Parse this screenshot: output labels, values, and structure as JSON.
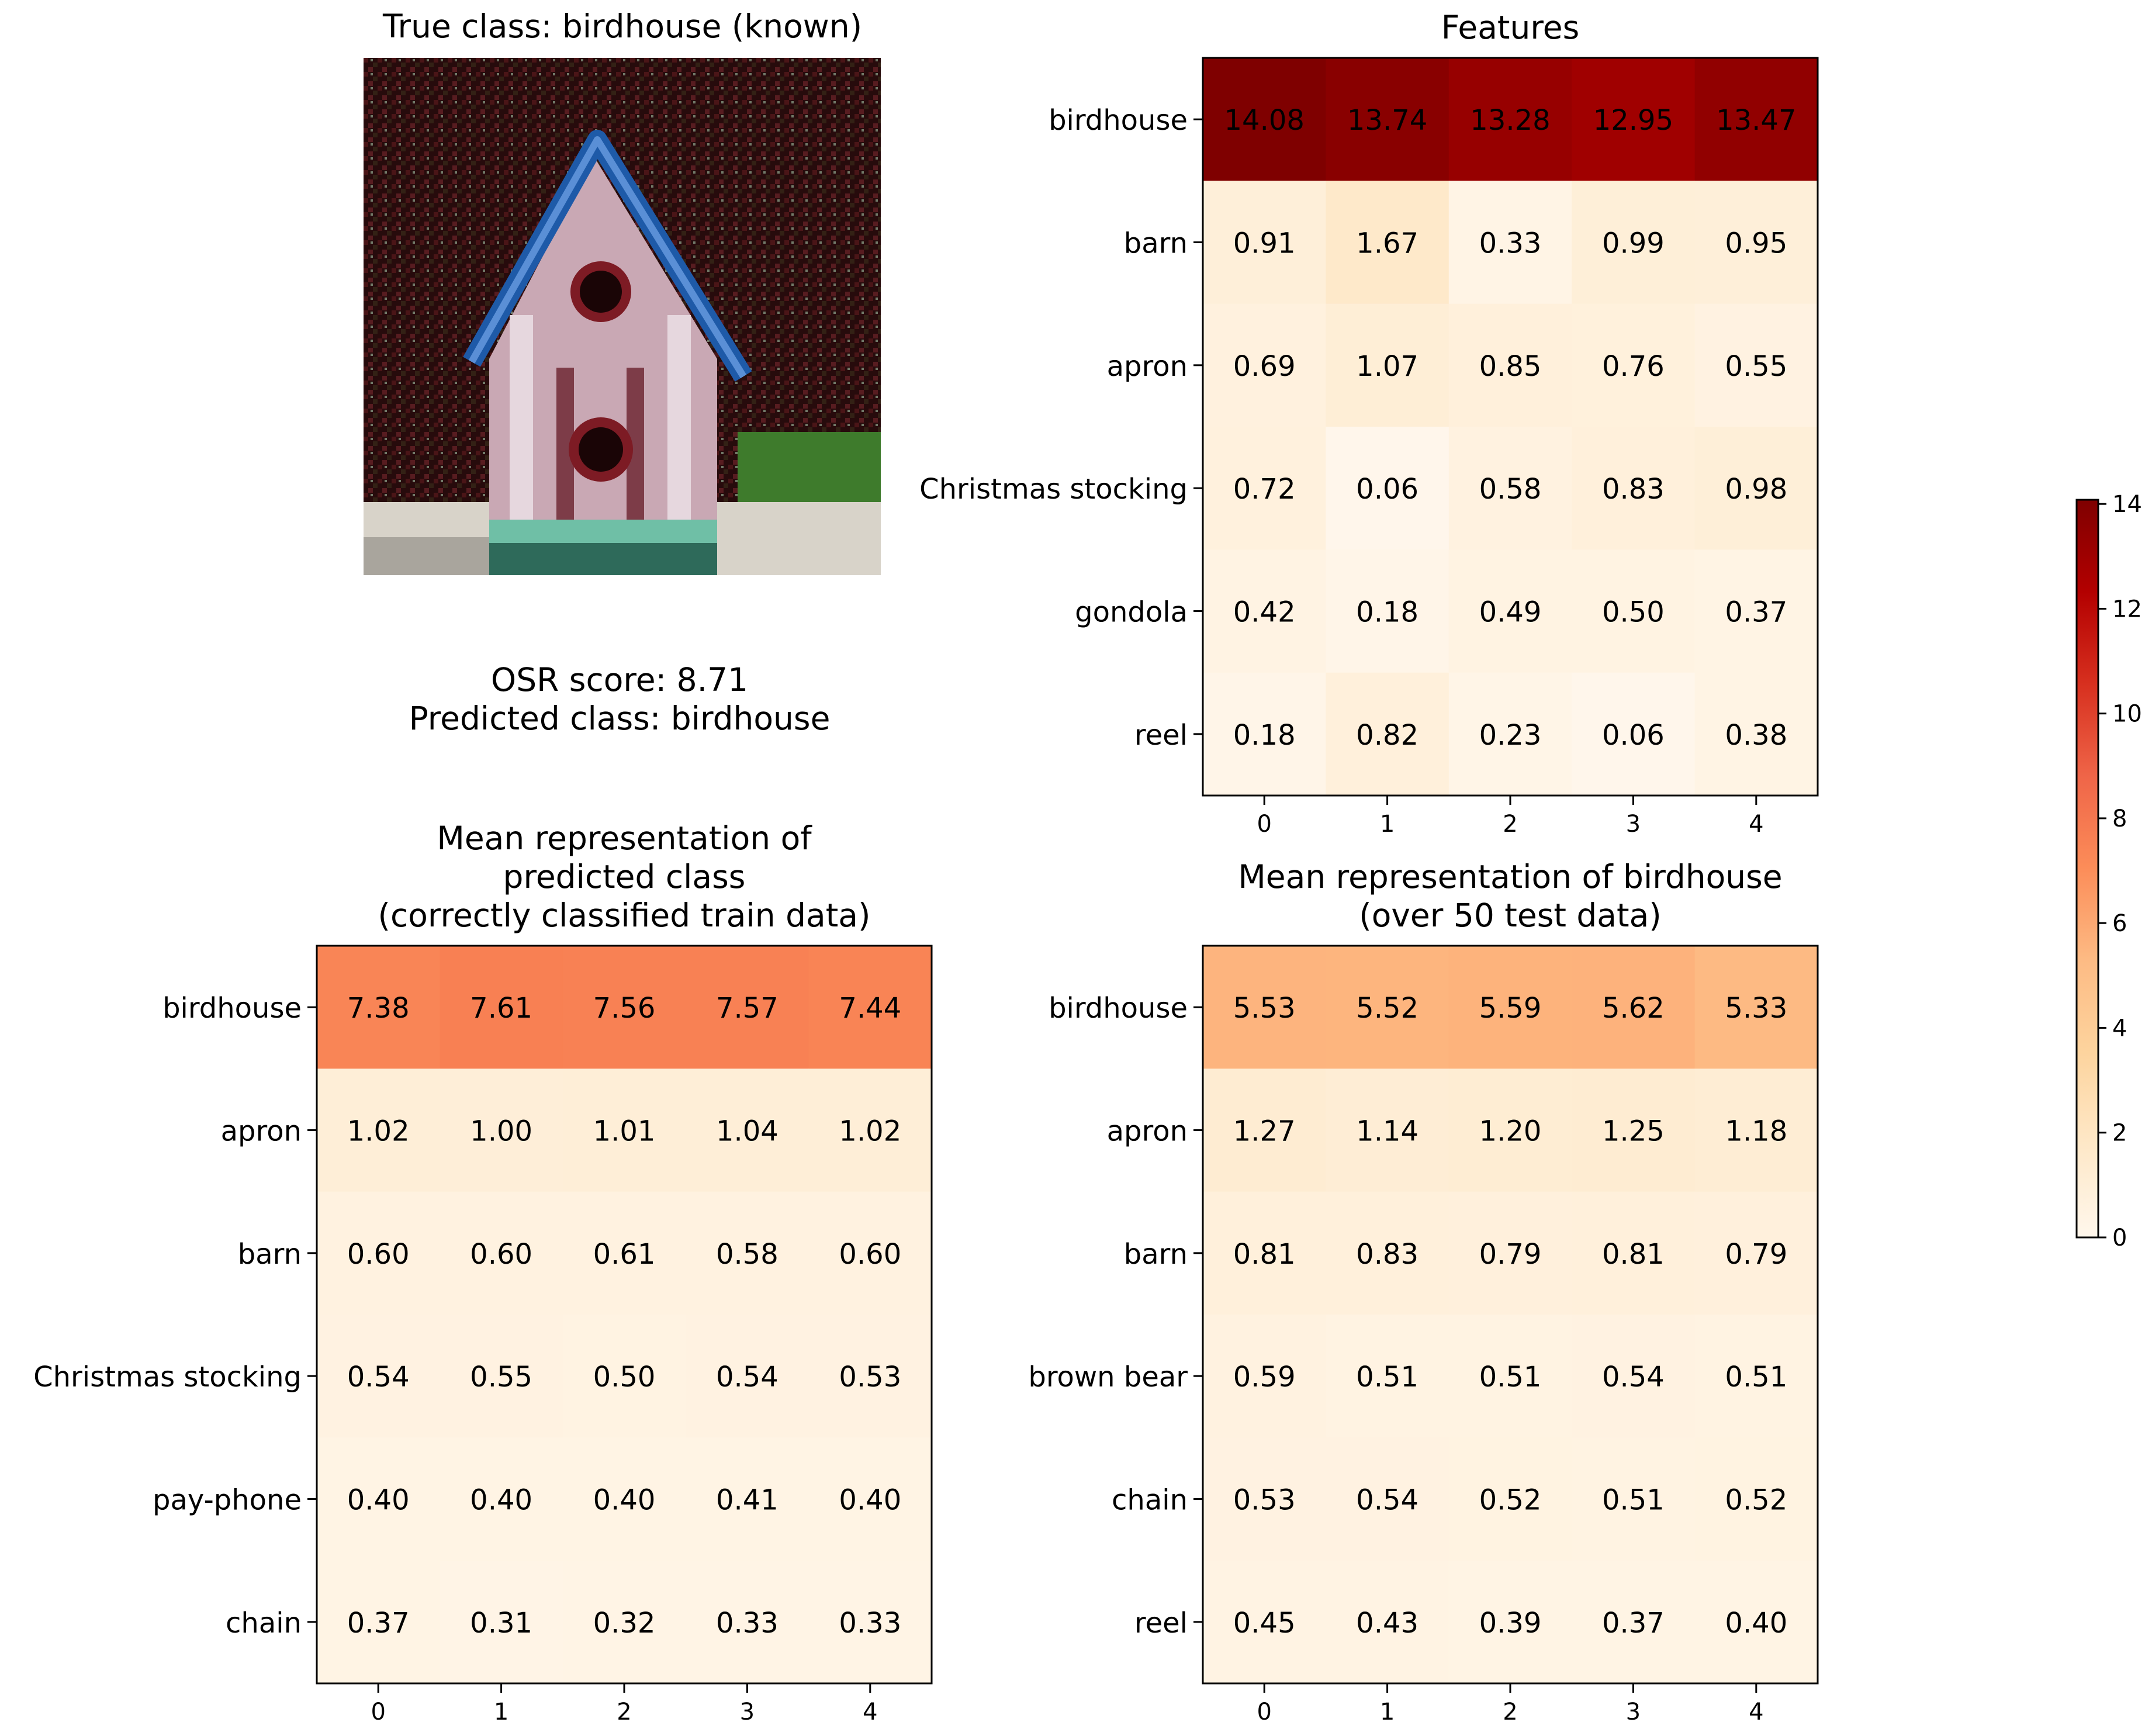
{
  "image_panel": {
    "title": "True class: birdhouse (known)",
    "osr_line": "OSR score: 8.71",
    "pred_line": "Predicted class: birdhouse"
  },
  "colorscale": {
    "name": "OrRd",
    "vmin": 0,
    "vmax": 14.08,
    "stops": [
      "#fff7ec",
      "#fee8c8",
      "#fdd49e",
      "#fdbb84",
      "#fc8d59",
      "#ef6548",
      "#d7301f",
      "#b30000",
      "#7f0000"
    ],
    "ticks": [
      "0",
      "2",
      "4",
      "6",
      "8",
      "10",
      "12",
      "14"
    ]
  },
  "chart_data": [
    {
      "type": "heatmap",
      "title": "Features",
      "rows": [
        "birdhouse",
        "barn",
        "apron",
        "Christmas stocking",
        "gondola",
        "reel"
      ],
      "cols": [
        "0",
        "1",
        "2",
        "3",
        "4"
      ],
      "values": [
        [
          14.08,
          13.74,
          13.28,
          12.95,
          13.47
        ],
        [
          0.91,
          1.67,
          0.33,
          0.99,
          0.95
        ],
        [
          0.69,
          1.07,
          0.85,
          0.76,
          0.55
        ],
        [
          0.72,
          0.06,
          0.58,
          0.83,
          0.98
        ],
        [
          0.42,
          0.18,
          0.49,
          0.5,
          0.37
        ],
        [
          0.18,
          0.82,
          0.23,
          0.06,
          0.38
        ]
      ]
    },
    {
      "type": "heatmap",
      "title": "Mean representation of\npredicted class\n(correctly classified train data)",
      "rows": [
        "birdhouse",
        "apron",
        "barn",
        "Christmas stocking",
        "pay-phone",
        "chain"
      ],
      "cols": [
        "0",
        "1",
        "2",
        "3",
        "4"
      ],
      "values": [
        [
          7.38,
          7.61,
          7.56,
          7.57,
          7.44
        ],
        [
          1.02,
          1.0,
          1.01,
          1.04,
          1.02
        ],
        [
          0.6,
          0.6,
          0.61,
          0.58,
          0.6
        ],
        [
          0.54,
          0.55,
          0.5,
          0.54,
          0.53
        ],
        [
          0.4,
          0.4,
          0.4,
          0.41,
          0.4
        ],
        [
          0.37,
          0.31,
          0.32,
          0.33,
          0.33
        ]
      ]
    },
    {
      "type": "heatmap",
      "title": "Mean representation of birdhouse\n(over 50 test data)",
      "rows": [
        "birdhouse",
        "apron",
        "barn",
        "brown bear",
        "chain",
        "reel"
      ],
      "cols": [
        "0",
        "1",
        "2",
        "3",
        "4"
      ],
      "values": [
        [
          5.53,
          5.52,
          5.59,
          5.62,
          5.33
        ],
        [
          1.27,
          1.14,
          1.2,
          1.25,
          1.18
        ],
        [
          0.81,
          0.83,
          0.79,
          0.81,
          0.79
        ],
        [
          0.59,
          0.51,
          0.51,
          0.54,
          0.51
        ],
        [
          0.53,
          0.54,
          0.52,
          0.51,
          0.52
        ],
        [
          0.45,
          0.43,
          0.39,
          0.37,
          0.4
        ]
      ]
    }
  ]
}
